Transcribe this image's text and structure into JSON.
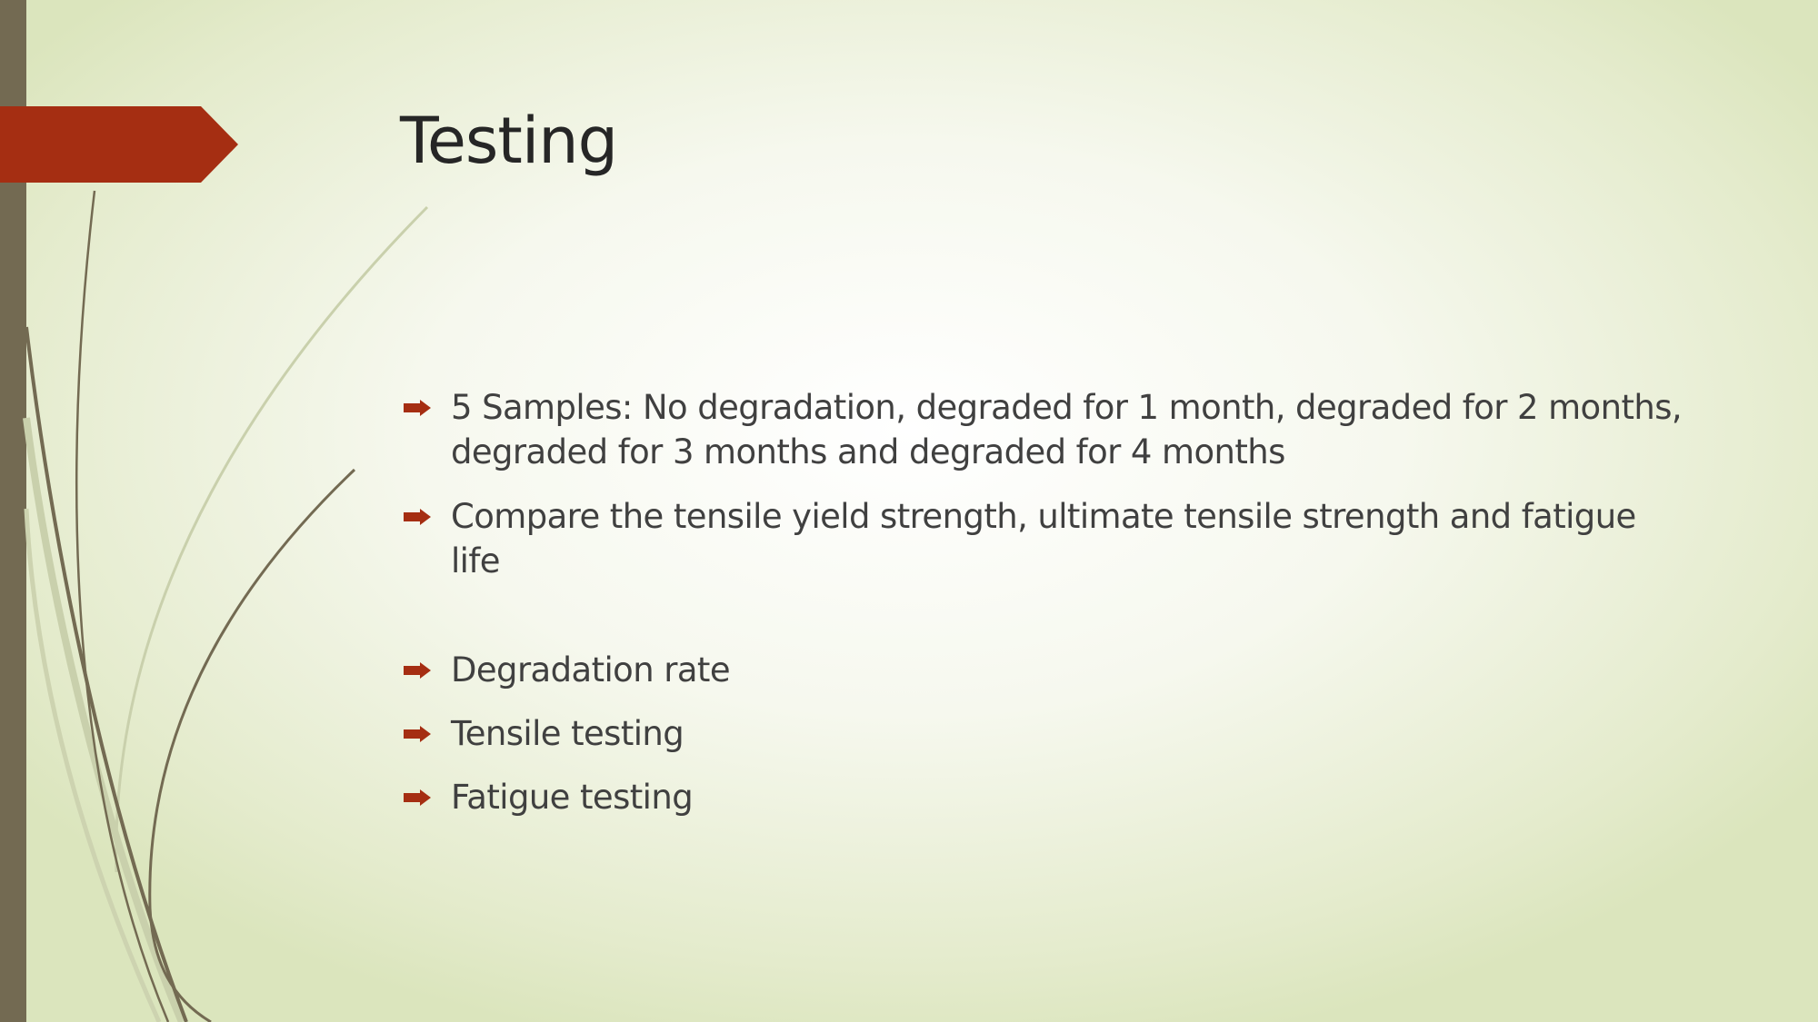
{
  "slide": {
    "title": "Testing",
    "bullets": [
      "5 Samples: No degradation,  degraded for 1 month, degraded for 2 months, degraded for 3 months and degraded for 4 months",
      "Compare the tensile yield strength, ultimate tensile strength and fatigue life",
      "Degradation rate",
      "Tensile testing",
      "Fatigue testing"
    ],
    "bullet_icon": "right-arrow-bullet-icon"
  },
  "colors": {
    "accent": "#a52e12",
    "bar": "#736a52",
    "title_text": "#262626",
    "body_text": "#404040",
    "background_center": "#ffffff",
    "background_edge": "#dbe5bd"
  }
}
